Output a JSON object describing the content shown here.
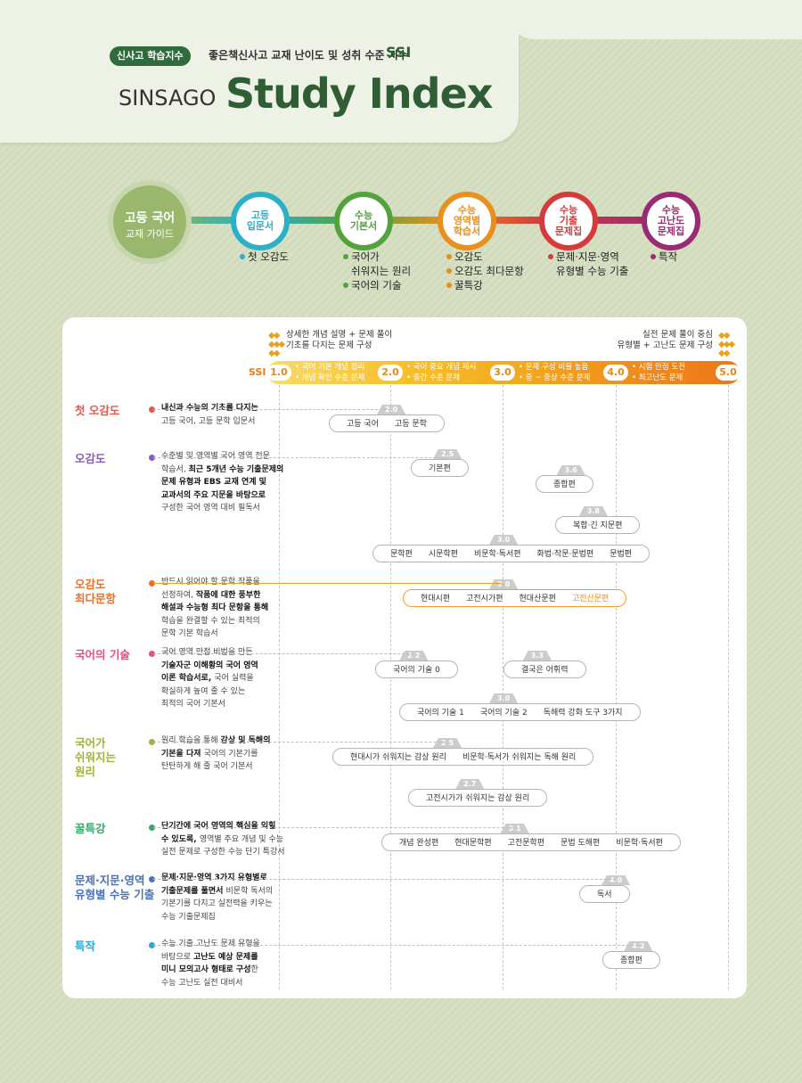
{
  "header": {
    "badge": "신사고 학습지수",
    "subtitle": "좋은책신사고 교재 난이도 및 성취 수준 지수",
    "ssi": "SSI",
    "brand": "SINSAGO",
    "title": "Study Index"
  },
  "guide": {
    "line1": "고등 국어",
    "line2": "교재 가이드"
  },
  "levels": [
    {
      "lines": [
        "고등",
        "입문서"
      ],
      "color": "#2bb0c7",
      "items": [
        "첫 오감도"
      ]
    },
    {
      "lines": [
        "수능",
        "기본서"
      ],
      "color": "#52a33d",
      "items": [
        "국어가\n쉬워지는 원리",
        "국어의 기술"
      ]
    },
    {
      "lines": [
        "수능",
        "영역별",
        "학습서"
      ],
      "color": "#e8901e",
      "items": [
        "오감도",
        "오감도 최다문항",
        "꿀특강"
      ]
    },
    {
      "lines": [
        "수능",
        "기출",
        "문제집"
      ],
      "color": "#d63b3b",
      "items": [
        "문제·지문·영역\n유형별 수능 기출"
      ]
    },
    {
      "lines": [
        "수능",
        "고난도",
        "문제집"
      ],
      "color": "#9a2a71",
      "items": [
        "특작"
      ]
    }
  ],
  "panel": {
    "top_left": [
      "상세한 개념 설명 + 문제 풀이",
      "기초를 다지는 문제 구성"
    ],
    "top_right": [
      "실전 문제 풀이 중심",
      "유형별 + 고난도 문제 구성"
    ],
    "ssi_label": "SSI",
    "ssi_scale": [
      "1.0",
      "2.0",
      "3.0",
      "4.0",
      "5.0"
    ],
    "ssi_desc": [
      [
        "국어 기본 개념 정리",
        "개념 확인 수준 문제"
      ],
      [
        "국어 중요 개념 제시",
        "중간 수준 문제"
      ],
      [
        "문제 구성 비율 높음",
        "중 ~ 중상 수준 문제"
      ],
      [
        "시험 만점 도전",
        "최고난도 문제"
      ]
    ]
  },
  "books": [
    {
      "name": "첫 오감도",
      "color": "#e05a4a",
      "desc": [
        [
          "b",
          "내신과 수능의 기초를 다지는"
        ],
        [
          "",
          "고등 국어, 고등 문학 입문서"
        ]
      ],
      "groups": [
        {
          "level": "2.0",
          "items": [
            "고등 국어",
            "고등 문학"
          ]
        }
      ]
    },
    {
      "name": "오감도",
      "color": "#8c5cb5",
      "desc": [
        [
          "",
          "수준별 및 영역별 국어 영역 전문"
        ],
        [
          "",
          "학습서, "
        ],
        [
          "b",
          "최근 5개년 수능 기출문제의"
        ],
        [
          "b",
          "문제 유형과 EBS 교재 연계 및"
        ],
        [
          "b",
          "교과서의 주요 지문을 바탕으로"
        ],
        [
          "",
          "구성한 국어 영역 대비 필독서"
        ]
      ],
      "groups": [
        {
          "level": "2.5",
          "items": [
            "기본편"
          ]
        },
        {
          "level": "3.6",
          "items": [
            "종합편"
          ]
        },
        {
          "level": "3.8",
          "items": [
            "복합·긴 지문편"
          ]
        },
        {
          "level": "3.0",
          "items": [
            "문학편",
            "시문학편",
            "비문학·독서편",
            "화법·작문·문법편",
            "문법편"
          ]
        }
      ]
    },
    {
      "name": "오감도\n최다문항",
      "color": "#ef6d22",
      "desc": [
        [
          "",
          "반드시 읽어야 할 문학 작품을"
        ],
        [
          "",
          "선정하여, "
        ],
        [
          "b",
          "작품에 대한 풍부한"
        ],
        [
          "b",
          "해설과 수능형 최다 문항을 통해"
        ],
        [
          "",
          "학습을 완결할 수 있는 최적의"
        ],
        [
          "",
          "문학 기본 학습서"
        ]
      ],
      "groups": [
        {
          "level": "3.0",
          "items": [
            "현대시편",
            "고전시가편",
            "현대산문편",
            "고전산문편"
          ]
        }
      ]
    },
    {
      "name": "국어의 기술",
      "color": "#e84f7d",
      "desc": [
        [
          "",
          "국어 영역 만점 비법을 만든"
        ],
        [
          "b",
          "기술자군 이해황의 국어 영역"
        ],
        [
          "b",
          "이론 학습서로, "
        ],
        [
          "",
          "국어 실력을"
        ],
        [
          "",
          "확실하게 높여 줄 수 있는"
        ],
        [
          "",
          "최적의 국어 기본서"
        ]
      ],
      "groups": [
        {
          "level": "2.2",
          "items": [
            "국어의 기술 0"
          ]
        },
        {
          "level": "3.3",
          "items": [
            "결국은 어휘력"
          ]
        },
        {
          "level": "3.0",
          "items": [
            "국어의 기술 1",
            "국어의 기술 2",
            "독해력 강화 도구 3가지"
          ]
        }
      ]
    },
    {
      "name": "국어가\n쉬워지는\n원리",
      "color": "#9bb532",
      "desc": [
        [
          "",
          "원리 학습을 통해 "
        ],
        [
          "b",
          "감상 및 독해의"
        ],
        [
          "b",
          "기본을 다져 "
        ],
        [
          "",
          "국어의 기본기를"
        ],
        [
          "",
          "탄탄하게 해 줄 국어 기본서"
        ]
      ],
      "groups": [
        {
          "level": "2.5",
          "items": [
            "현대시가 쉬워지는 감상 원리",
            "비문학·독서가 쉬워지는 독해 원리"
          ]
        },
        {
          "level": "2.7",
          "items": [
            "고전시가가 쉬워지는 감상 원리"
          ]
        }
      ]
    },
    {
      "name": "꿀특강",
      "color": "#37a86a",
      "desc": [
        [
          "b",
          "단기간에 국어 영역의 핵심을 익힐"
        ],
        [
          "b",
          "수 있도록, "
        ],
        [
          "",
          "영역별 주요 개념 및 수능"
        ],
        [
          "",
          "실전 문제로 구성한 수능 단기 특강서"
        ]
      ],
      "groups": [
        {
          "level": "3.1",
          "items": [
            "개념 완성편",
            "현대문학편",
            "고전문학편",
            "문법 도해편",
            "비문학·독서편"
          ]
        }
      ]
    },
    {
      "name": "문제·지문·영역\n유형별 수능 기출",
      "color": "#4a72b8",
      "desc": [
        [
          "b",
          "문제·지문·영역 3가지 유형별로"
        ],
        [
          "b",
          "기출문제를 풀면서 "
        ],
        [
          "",
          "비문학 독서의"
        ],
        [
          "",
          "기본기를 다지고 실전력을 키우는"
        ],
        [
          "",
          "수능 기출문제집"
        ]
      ],
      "groups": [
        {
          "level": "4.0",
          "items": [
            "독서"
          ]
        }
      ]
    },
    {
      "name": "특작",
      "color": "#2aa9d0",
      "desc": [
        [
          "",
          "수능 기출 고난도 문제 유형을"
        ],
        [
          "",
          "바탕으로 "
        ],
        [
          "b",
          "고난도 예상 문제를"
        ],
        [
          "b",
          "미니 모의고사 형태로 구성"
        ],
        [
          "",
          "한"
        ],
        [
          "",
          "수능 고난도 실전 대비서"
        ]
      ],
      "groups": [
        {
          "level": "4.2",
          "items": [
            "종합편"
          ]
        }
      ]
    }
  ]
}
